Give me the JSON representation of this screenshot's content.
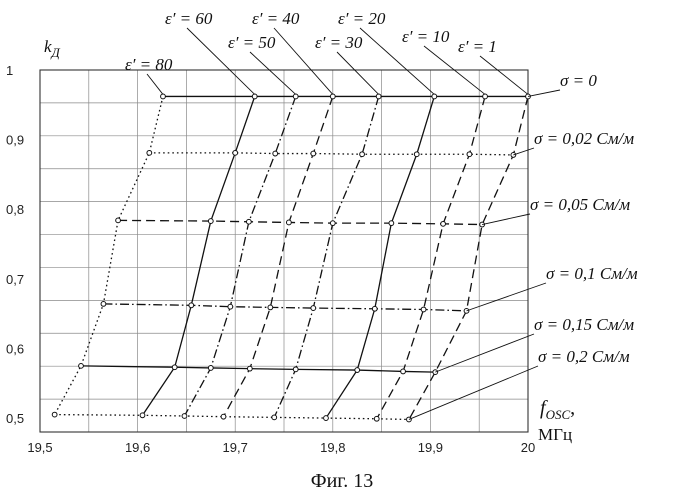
{
  "caption": "Фиг. 13",
  "chart_data": {
    "type": "line",
    "ylabel_main": "k",
    "ylabel_sub": "Д",
    "xlabel_main": "f",
    "xlabel_sub": "OSC",
    "xlabel_suffix": ",",
    "xlabel_unit": "МГц",
    "xlim": [
      19.5,
      20.0
    ],
    "ylim": [
      0.48,
      1.0
    ],
    "x_ticks": [
      {
        "v": 19.5,
        "label": "19,5"
      },
      {
        "v": 19.6,
        "label": "19,6"
      },
      {
        "v": 19.7,
        "label": "19,7"
      },
      {
        "v": 19.8,
        "label": "19,8"
      },
      {
        "v": 19.9,
        "label": "19,9"
      },
      {
        "v": 20.0,
        "label": "20"
      }
    ],
    "y_ticks": [
      {
        "v": 0.5,
        "label": "0,5"
      },
      {
        "v": 0.6,
        "label": "0,6"
      },
      {
        "v": 0.7,
        "label": "0,7"
      },
      {
        "v": 0.8,
        "label": "0,8"
      },
      {
        "v": 0.9,
        "label": "0,9"
      },
      {
        "v": 1.0,
        "label": "1"
      }
    ],
    "grid": true,
    "sigma_curves": [
      {
        "label": "σ = 0",
        "dash": "solid",
        "y": [
          0.962,
          0.962,
          0.962,
          0.962,
          0.962,
          0.962,
          0.962,
          0.962
        ]
      },
      {
        "label": "σ = 0,02 См/м",
        "dash": "dot",
        "y": [
          0.881,
          0.881,
          0.88,
          0.88,
          0.879,
          0.879,
          0.879,
          0.878
        ]
      },
      {
        "label": "σ = 0,05 См/м",
        "dash": "dash",
        "y": [
          0.784,
          0.783,
          0.782,
          0.781,
          0.78,
          0.78,
          0.779,
          0.778
        ]
      },
      {
        "label": "σ = 0,1 См/м",
        "dash": "dashdot",
        "y": [
          0.664,
          0.662,
          0.66,
          0.659,
          0.658,
          0.657,
          0.656,
          0.654
        ]
      },
      {
        "label": "σ = 0,15 См/м",
        "dash": "solid",
        "y": [
          0.575,
          0.573,
          0.572,
          0.571,
          0.57,
          0.569,
          0.567,
          0.566
        ]
      },
      {
        "label": "σ = 0,2 См/м",
        "dash": "dot",
        "y": [
          0.505,
          0.504,
          0.503,
          0.502,
          0.501,
          0.5,
          0.499,
          0.498
        ]
      }
    ],
    "eps_curves": [
      {
        "label": "ε′ = 80",
        "dash": "dot",
        "x": [
          19.626,
          19.612,
          19.58,
          19.565,
          19.542,
          19.515
        ]
      },
      {
        "label": "ε′ = 60",
        "dash": "solid",
        "x": [
          19.72,
          19.7,
          19.675,
          19.655,
          19.638,
          19.605
        ]
      },
      {
        "label": "ε′ = 50",
        "dash": "dashdot",
        "x": [
          19.762,
          19.741,
          19.714,
          19.695,
          19.675,
          19.648
        ]
      },
      {
        "label": "ε′ = 40",
        "dash": "dash",
        "x": [
          19.8,
          19.78,
          19.755,
          19.736,
          19.715,
          19.688
        ]
      },
      {
        "label": "ε′ = 30",
        "dash": "dashdot",
        "x": [
          19.847,
          19.83,
          19.8,
          19.78,
          19.762,
          19.74
        ]
      },
      {
        "label": "ε′ = 20",
        "dash": "solid",
        "x": [
          19.904,
          19.886,
          19.86,
          19.843,
          19.825,
          19.793
        ]
      },
      {
        "label": "ε′ = 10",
        "dash": "dash",
        "x": [
          19.956,
          19.94,
          19.913,
          19.893,
          19.872,
          19.845
        ]
      },
      {
        "label": "ε′ = 1",
        "dash": "dash",
        "x": [
          20.0,
          19.985,
          19.953,
          19.937,
          19.905,
          19.878
        ]
      }
    ]
  }
}
